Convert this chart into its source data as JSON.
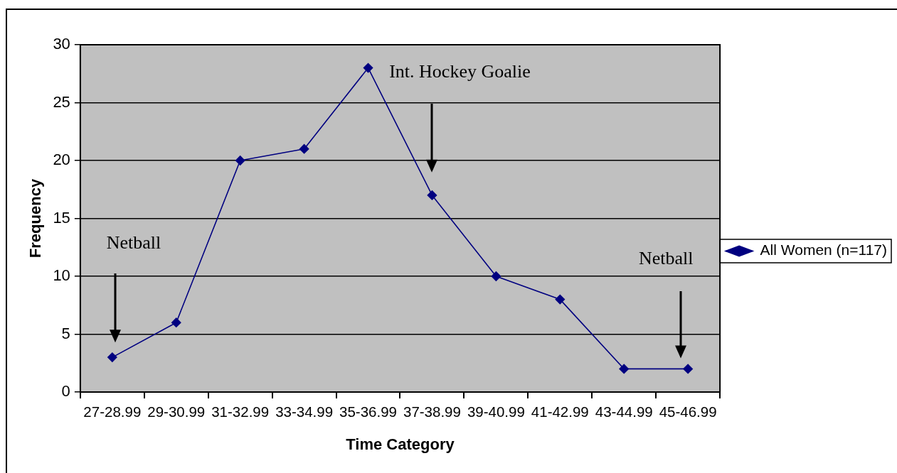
{
  "chart_data": {
    "type": "line",
    "xlabel": "Time Category",
    "ylabel": "Frequency",
    "categories": [
      "27-28.99",
      "29-30.99",
      "31-32.99",
      "33-34.99",
      "35-36.99",
      "37-38.99",
      "39-40.99",
      "41-42.99",
      "43-44.99",
      "45-46.99"
    ],
    "series": [
      {
        "name": "All Women (n=117)",
        "color": "#000080",
        "values": [
          3,
          6,
          20,
          21,
          28,
          17,
          10,
          8,
          2,
          2
        ]
      }
    ],
    "ylim": [
      0,
      30
    ],
    "yticks": [
      0,
      5,
      10,
      15,
      20,
      25,
      30
    ],
    "grid": "y",
    "legend": "right",
    "marker": "diamond",
    "line_style": "solid",
    "annotations": [
      "Netball",
      "Int. Hockey Goalie",
      "Netball"
    ]
  }
}
